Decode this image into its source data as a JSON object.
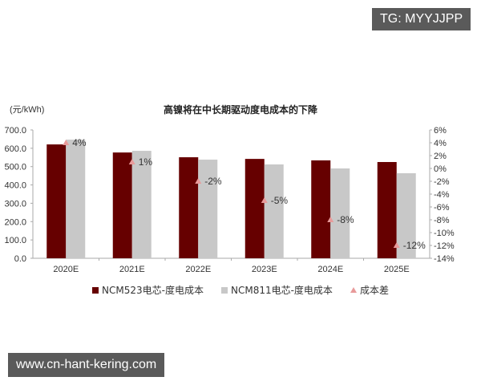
{
  "watermarks": {
    "top_right": "TG: MYYJJPP",
    "bottom_left": "www.cn-hant-kering.com"
  },
  "chart_data": {
    "type": "bar",
    "title": "高镍将在中长期驱动度电成本的下降",
    "ylabel": "(元/kWh)",
    "xlabel": "",
    "categories": [
      "2020E",
      "2021E",
      "2022E",
      "2023E",
      "2024E",
      "2025E"
    ],
    "series": [
      {
        "name": "NCM523电芯-度电成本",
        "type": "bar",
        "axis": "left",
        "color": "#660000",
        "values": [
          621,
          577,
          551,
          542,
          534,
          525
        ]
      },
      {
        "name": "NCM811电芯-度电成本",
        "type": "bar",
        "axis": "left",
        "color": "#c8c8c8",
        "values": [
          647,
          586,
          538,
          512,
          490,
          464
        ]
      },
      {
        "name": "成本差",
        "type": "scatter",
        "axis": "right",
        "marker": "triangle",
        "color": "#e89a9a",
        "values": [
          4,
          1,
          -2,
          -5,
          -8,
          -12
        ],
        "labels": [
          "4%",
          "1%",
          "-2%",
          "-5%",
          "-8%",
          "-12%"
        ]
      }
    ],
    "ylim": [
      0,
      700
    ],
    "yticks": [
      "0.0",
      "100.0",
      "200.0",
      "300.0",
      "400.0",
      "500.0",
      "600.0",
      "700.0"
    ],
    "y2lim": [
      -14,
      6
    ],
    "y2ticks": [
      "-14%",
      "-12%",
      "-10%",
      "-8%",
      "-6%",
      "-4%",
      "-2%",
      "0%",
      "2%",
      "4%",
      "6%"
    ],
    "grid": false,
    "legend_position": "bottom"
  }
}
